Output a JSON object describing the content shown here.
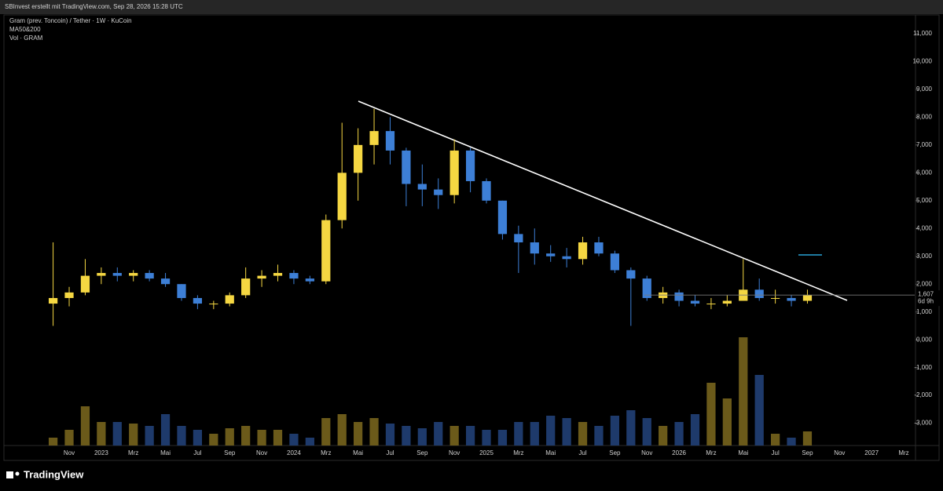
{
  "chart_data": {
    "type": "candlestick",
    "header": "SBInvest erstellt mit TradingView.com, Sep 28, 2026 15:28 UTC",
    "title": "Gram (prev. Toncoin) / Tether · 1W · KuCoin",
    "indicator": "MA50&200",
    "volume_label": "Vol · GRAM",
    "brand": "TradingView",
    "categories": [
      null,
      "Nov",
      null,
      "2023",
      null,
      "Mrz",
      null,
      "Mai",
      null,
      "Jul",
      null,
      "Sep",
      null,
      "Nov",
      null,
      "2024",
      null,
      "Mrz",
      null,
      "Mai",
      null,
      "Jul",
      null,
      "Sep",
      null,
      "Nov",
      null,
      "2025",
      null,
      "Mrz",
      null,
      "Mai",
      null,
      "Jul",
      null,
      "Sep",
      null,
      "Nov",
      null,
      "2026",
      null,
      "Mrz",
      null,
      "Mai",
      null,
      "Jul",
      null,
      "Sep",
      null,
      "Nov",
      null,
      "2027",
      null,
      "Mrz"
    ],
    "open": [
      1.3,
      1.5,
      1.7,
      2.3,
      2.4,
      2.3,
      2.4,
      2.2,
      2.0,
      1.5,
      1.3,
      1.3,
      1.6,
      2.2,
      2.3,
      2.4,
      2.2,
      2.1,
      4.3,
      6.0,
      7.0,
      7.5,
      6.8,
      5.6,
      5.4,
      5.2,
      6.8,
      5.7,
      5.0,
      3.8,
      3.5,
      3.1,
      3.0,
      2.9,
      3.5,
      3.1,
      2.5,
      2.2,
      1.5,
      1.7,
      1.4,
      1.3,
      1.3,
      1.4,
      1.8,
      1.5,
      1.5,
      1.4,
      null,
      null,
      null,
      null,
      null,
      null
    ],
    "high": [
      3.5,
      1.9,
      2.9,
      2.6,
      2.6,
      2.5,
      2.5,
      2.4,
      2.0,
      1.6,
      1.4,
      1.7,
      2.6,
      2.5,
      2.7,
      2.5,
      2.3,
      4.5,
      7.8,
      7.6,
      8.3,
      8.0,
      6.9,
      6.3,
      5.8,
      7.2,
      6.9,
      5.8,
      5.0,
      4.1,
      4.0,
      3.4,
      3.3,
      3.7,
      3.7,
      3.2,
      2.6,
      2.3,
      1.9,
      1.8,
      1.6,
      1.5,
      1.6,
      2.9,
      2.2,
      1.8,
      1.6,
      1.8,
      null,
      null,
      null,
      null,
      null,
      null
    ],
    "low": [
      0.5,
      1.2,
      1.6,
      2.0,
      2.1,
      2.1,
      2.1,
      1.9,
      1.4,
      1.1,
      1.1,
      1.2,
      1.5,
      1.9,
      2.1,
      2.0,
      2.0,
      2.0,
      4.0,
      5.0,
      6.3,
      6.3,
      4.8,
      4.8,
      4.7,
      4.9,
      5.3,
      4.9,
      3.6,
      2.4,
      2.7,
      2.8,
      2.6,
      2.7,
      3.0,
      2.4,
      0.5,
      1.4,
      1.3,
      1.2,
      1.2,
      1.1,
      1.2,
      1.4,
      1.4,
      1.3,
      1.2,
      1.3,
      null,
      null,
      null,
      null,
      null,
      null
    ],
    "close": [
      1.5,
      1.7,
      2.3,
      2.4,
      2.3,
      2.4,
      2.2,
      2.0,
      1.5,
      1.3,
      1.3,
      1.6,
      2.2,
      2.3,
      2.4,
      2.2,
      2.1,
      4.3,
      6.0,
      7.0,
      7.5,
      6.8,
      5.6,
      5.4,
      5.2,
      6.8,
      5.7,
      5.0,
      3.8,
      3.5,
      3.1,
      3.0,
      2.9,
      3.5,
      3.1,
      2.5,
      2.2,
      1.5,
      1.7,
      1.4,
      1.3,
      1.3,
      1.4,
      1.8,
      1.5,
      1.5,
      1.4,
      1.6,
      null,
      null,
      null,
      null,
      null,
      null
    ],
    "volume": [
      10,
      20,
      50,
      30,
      30,
      28,
      25,
      40,
      25,
      20,
      15,
      22,
      25,
      20,
      20,
      15,
      10,
      35,
      40,
      30,
      35,
      28,
      25,
      22,
      30,
      25,
      25,
      20,
      20,
      30,
      30,
      38,
      35,
      30,
      25,
      38,
      45,
      35,
      25,
      30,
      40,
      80,
      60,
      138,
      90,
      15,
      10,
      18,
      null,
      null,
      null,
      null,
      null,
      null
    ],
    "up_color": "#f5d742",
    "down_color": "#3d7fd6",
    "volume_up_color": "#6b5a1a",
    "volume_down_color": "#1e3a6b",
    "ylim": [
      -3.8,
      11.9
    ],
    "yticks": [
      {
        "value": 11,
        "label": "11,000"
      },
      {
        "value": 10,
        "label": "10,000"
      },
      {
        "value": 9,
        "label": "9,000"
      },
      {
        "value": 8,
        "label": "8,000"
      },
      {
        "value": 7,
        "label": "7,000"
      },
      {
        "value": 6,
        "label": "6,000"
      },
      {
        "value": 5,
        "label": "5,000"
      },
      {
        "value": 4,
        "label": "4,000"
      },
      {
        "value": 3,
        "label": "3,000"
      },
      {
        "value": 2,
        "label": "2,000"
      },
      {
        "value": 1,
        "label": "1,000"
      },
      {
        "value": 0,
        "label": "0,000"
      },
      {
        "value": -1,
        "label": "-1,000"
      },
      {
        "value": -2,
        "label": "-2,000"
      },
      {
        "value": -3,
        "label": "-3,000"
      }
    ],
    "last_price": {
      "value": 1.607,
      "label": "1,607"
    },
    "countdown": "6d 9h"
  }
}
